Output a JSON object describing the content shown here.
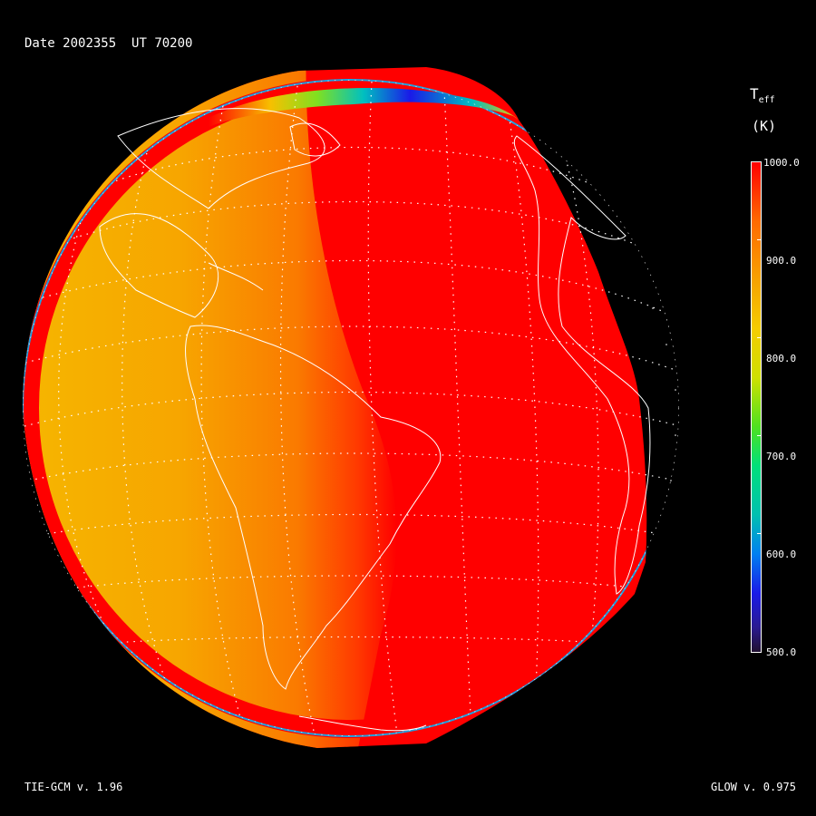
{
  "header": {
    "date_label": "Date",
    "date": "2002355",
    "ut_label": "UT",
    "ut": "70200"
  },
  "colorbar": {
    "quantity": "T",
    "quantity_sub": "eff",
    "unit": "(K)",
    "range": [
      500.0,
      1000.0
    ],
    "ticks": [
      "1000.0",
      "900.0",
      "800.0",
      "700.0",
      "600.0",
      "500.0"
    ],
    "colormap": [
      "#ff0000",
      "#f7a200",
      "#4fe020",
      "#00c0b0",
      "#1a1ae8",
      "#201030"
    ]
  },
  "map": {
    "projection": "orthographic",
    "grid": "dotted",
    "coastlines_color": "#ffffff",
    "dayside_color": "#ff0000",
    "duskside_color": "#f5b400"
  },
  "footer": {
    "left": "TIE-GCM v. 1.96",
    "right": "GLOW v. 0.975"
  }
}
